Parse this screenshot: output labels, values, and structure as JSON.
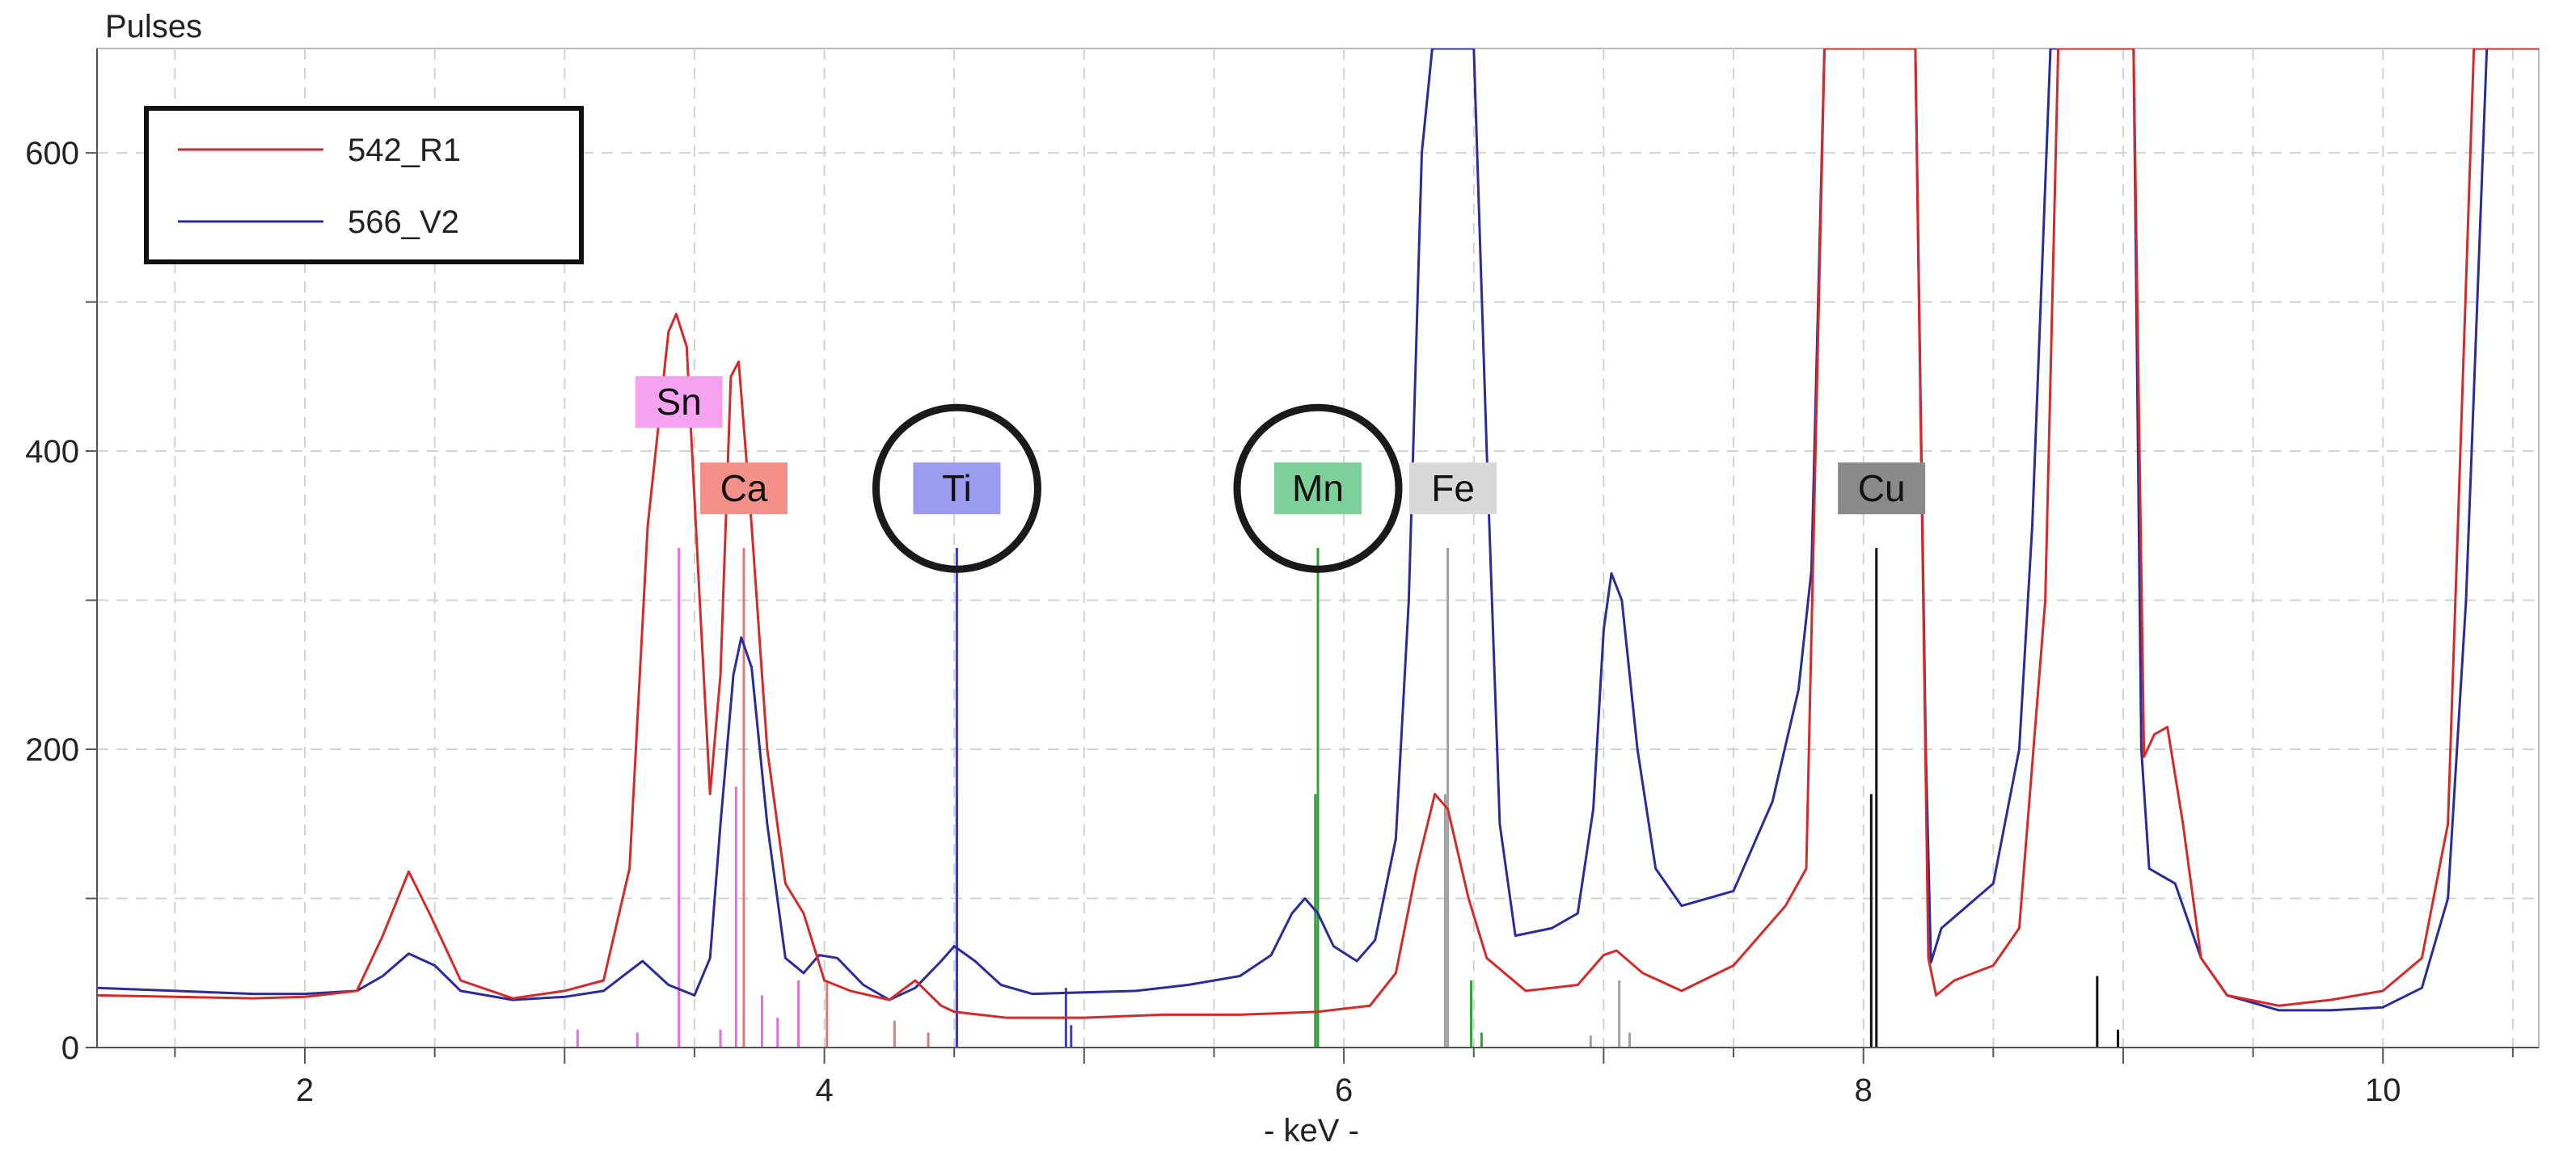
{
  "chart_data": {
    "type": "line",
    "title": "",
    "ylabel": "Pulses",
    "xlabel": "- keV -",
    "xlim": [
      1.2,
      10.6
    ],
    "ylim": [
      0,
      670
    ],
    "xticks": [
      2,
      4,
      6,
      8,
      10
    ],
    "yticks": [
      0,
      200,
      400,
      600
    ],
    "grid": true,
    "legend": {
      "position": "top-left",
      "entries": [
        {
          "name": "542_R1",
          "color": "#d42a2a"
        },
        {
          "name": "566_V2",
          "color": "#2b2b9a"
        }
      ]
    },
    "series": [
      {
        "name": "566_V2",
        "color": "#2b2b9a",
        "points": [
          [
            1.2,
            40
          ],
          [
            1.5,
            38
          ],
          [
            1.8,
            36
          ],
          [
            2.0,
            36
          ],
          [
            2.2,
            38
          ],
          [
            2.3,
            48
          ],
          [
            2.4,
            63
          ],
          [
            2.5,
            55
          ],
          [
            2.6,
            38
          ],
          [
            2.8,
            32
          ],
          [
            3.0,
            34
          ],
          [
            3.15,
            38
          ],
          [
            3.3,
            58
          ],
          [
            3.4,
            42
          ],
          [
            3.5,
            35
          ],
          [
            3.56,
            60
          ],
          [
            3.6,
            150
          ],
          [
            3.65,
            250
          ],
          [
            3.68,
            275
          ],
          [
            3.72,
            255
          ],
          [
            3.78,
            150
          ],
          [
            3.85,
            60
          ],
          [
            3.92,
            50
          ],
          [
            3.98,
            62
          ],
          [
            4.05,
            60
          ],
          [
            4.15,
            42
          ],
          [
            4.25,
            32
          ],
          [
            4.35,
            40
          ],
          [
            4.45,
            58
          ],
          [
            4.5,
            68
          ],
          [
            4.58,
            58
          ],
          [
            4.68,
            42
          ],
          [
            4.8,
            36
          ],
          [
            5.0,
            37
          ],
          [
            5.2,
            38
          ],
          [
            5.4,
            42
          ],
          [
            5.6,
            48
          ],
          [
            5.72,
            62
          ],
          [
            5.8,
            90
          ],
          [
            5.85,
            100
          ],
          [
            5.9,
            90
          ],
          [
            5.96,
            68
          ],
          [
            6.05,
            58
          ],
          [
            6.12,
            72
          ],
          [
            6.2,
            140
          ],
          [
            6.25,
            300
          ],
          [
            6.3,
            600
          ],
          [
            6.34,
            670
          ],
          [
            6.5,
            670
          ],
          [
            6.55,
            400
          ],
          [
            6.6,
            150
          ],
          [
            6.66,
            75
          ],
          [
            6.8,
            80
          ],
          [
            6.9,
            90
          ],
          [
            6.96,
            160
          ],
          [
            7.0,
            280
          ],
          [
            7.03,
            318
          ],
          [
            7.07,
            300
          ],
          [
            7.13,
            200
          ],
          [
            7.2,
            120
          ],
          [
            7.3,
            95
          ],
          [
            7.5,
            105
          ],
          [
            7.65,
            165
          ],
          [
            7.75,
            240
          ],
          [
            7.8,
            320
          ],
          [
            7.85,
            670
          ],
          [
            8.2,
            670
          ],
          [
            8.24,
            200
          ],
          [
            8.26,
            57
          ],
          [
            8.3,
            80
          ],
          [
            8.5,
            110
          ],
          [
            8.6,
            200
          ],
          [
            8.65,
            350
          ],
          [
            8.72,
            670
          ],
          [
            9.04,
            670
          ],
          [
            9.07,
            200
          ],
          [
            9.1,
            120
          ],
          [
            9.2,
            110
          ],
          [
            9.3,
            60
          ],
          [
            9.4,
            35
          ],
          [
            9.6,
            25
          ],
          [
            9.8,
            25
          ],
          [
            10.0,
            27
          ],
          [
            10.15,
            40
          ],
          [
            10.25,
            100
          ],
          [
            10.32,
            300
          ],
          [
            10.4,
            670
          ],
          [
            10.6,
            670
          ]
        ]
      },
      {
        "name": "542_R1",
        "color": "#d42a2a",
        "points": [
          [
            1.2,
            35
          ],
          [
            1.5,
            34
          ],
          [
            1.8,
            33
          ],
          [
            2.0,
            34
          ],
          [
            2.2,
            38
          ],
          [
            2.3,
            75
          ],
          [
            2.4,
            118
          ],
          [
            2.48,
            90
          ],
          [
            2.6,
            45
          ],
          [
            2.8,
            33
          ],
          [
            3.0,
            38
          ],
          [
            3.15,
            45
          ],
          [
            3.25,
            120
          ],
          [
            3.32,
            350
          ],
          [
            3.4,
            480
          ],
          [
            3.43,
            492
          ],
          [
            3.47,
            470
          ],
          [
            3.52,
            300
          ],
          [
            3.56,
            170
          ],
          [
            3.6,
            250
          ],
          [
            3.64,
            450
          ],
          [
            3.67,
            460
          ],
          [
            3.72,
            350
          ],
          [
            3.78,
            200
          ],
          [
            3.85,
            110
          ],
          [
            3.92,
            90
          ],
          [
            4.0,
            45
          ],
          [
            4.1,
            38
          ],
          [
            4.25,
            32
          ],
          [
            4.35,
            45
          ],
          [
            4.45,
            28
          ],
          [
            4.5,
            24
          ],
          [
            4.7,
            20
          ],
          [
            5.0,
            20
          ],
          [
            5.3,
            22
          ],
          [
            5.6,
            22
          ],
          [
            5.9,
            24
          ],
          [
            6.1,
            28
          ],
          [
            6.2,
            50
          ],
          [
            6.28,
            120
          ],
          [
            6.35,
            170
          ],
          [
            6.4,
            160
          ],
          [
            6.48,
            100
          ],
          [
            6.55,
            60
          ],
          [
            6.7,
            38
          ],
          [
            6.9,
            42
          ],
          [
            7.0,
            62
          ],
          [
            7.05,
            65
          ],
          [
            7.15,
            50
          ],
          [
            7.3,
            38
          ],
          [
            7.5,
            55
          ],
          [
            7.7,
            95
          ],
          [
            7.78,
            120
          ],
          [
            7.85,
            670
          ],
          [
            8.2,
            670
          ],
          [
            8.25,
            60
          ],
          [
            8.28,
            35
          ],
          [
            8.35,
            45
          ],
          [
            8.5,
            55
          ],
          [
            8.6,
            80
          ],
          [
            8.7,
            300
          ],
          [
            8.75,
            670
          ],
          [
            9.04,
            670
          ],
          [
            9.08,
            195
          ],
          [
            9.12,
            210
          ],
          [
            9.17,
            215
          ],
          [
            9.23,
            150
          ],
          [
            9.3,
            60
          ],
          [
            9.4,
            35
          ],
          [
            9.6,
            28
          ],
          [
            9.8,
            32
          ],
          [
            10.0,
            38
          ],
          [
            10.15,
            60
          ],
          [
            10.25,
            150
          ],
          [
            10.35,
            670
          ],
          [
            10.6,
            670
          ]
        ]
      }
    ],
    "element_markers": [
      {
        "element": "Sn",
        "color": "#e36ee3",
        "bg": "#f5a3f0",
        "fg": "#111111",
        "lines": [
          [
            3.44,
            335
          ],
          [
            3.66,
            175
          ],
          [
            3.69,
            25
          ],
          [
            3.6,
            12
          ],
          [
            3.76,
            35
          ],
          [
            3.82,
            20
          ],
          [
            3.9,
            45
          ],
          [
            3.05,
            12
          ],
          [
            3.28,
            10
          ]
        ],
        "label_x": 3.44,
        "label_y": 433
      },
      {
        "element": "Ca",
        "color": "#e07a7a",
        "bg": "#f3908a",
        "fg": "#111111",
        "lines": [
          [
            3.69,
            335
          ],
          [
            4.01,
            45
          ],
          [
            4.27,
            18
          ],
          [
            4.4,
            10
          ]
        ],
        "label_x": 3.69,
        "label_y": 375
      },
      {
        "element": "Ti",
        "color": "#3a3ac8",
        "bg": "#9b9bef",
        "fg": "#111111",
        "lines": [
          [
            4.51,
            335
          ],
          [
            4.51,
            170
          ],
          [
            4.93,
            40
          ],
          [
            4.95,
            15
          ]
        ],
        "label_x": 4.51,
        "label_y": 375,
        "circled": true
      },
      {
        "element": "Mn",
        "color": "#2ea33a",
        "bg": "#7ed09a",
        "fg": "#111111",
        "lines": [
          [
            5.9,
            335
          ],
          [
            5.89,
            170
          ],
          [
            6.49,
            45
          ],
          [
            6.53,
            10
          ]
        ],
        "label_x": 5.9,
        "label_y": 375,
        "circled": true
      },
      {
        "element": "Fe",
        "color": "#a0a0a0",
        "bg": "#d8d8d8",
        "fg": "#111111",
        "lines": [
          [
            6.4,
            335
          ],
          [
            6.39,
            170
          ],
          [
            7.06,
            45
          ],
          [
            7.1,
            10
          ],
          [
            6.95,
            8
          ]
        ],
        "label_x": 6.42,
        "label_y": 375
      },
      {
        "element": "Cu",
        "color": "#111111",
        "bg": "#8a8a8a",
        "fg": "#111111",
        "lines": [
          [
            8.05,
            335
          ],
          [
            8.03,
            170
          ],
          [
            8.9,
            48
          ],
          [
            8.98,
            12
          ]
        ],
        "label_x": 8.07,
        "label_y": 375
      }
    ]
  }
}
